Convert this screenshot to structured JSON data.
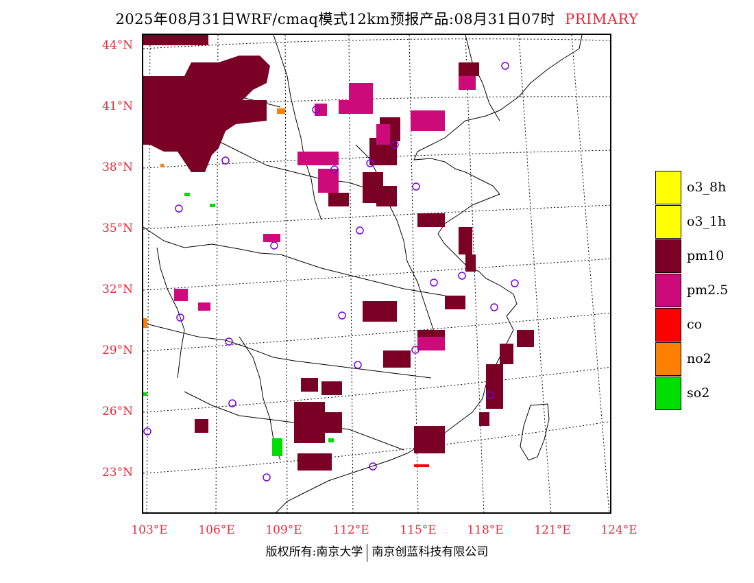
{
  "title": {
    "main": "2025年08月31日WRF/cmaq模式12km预报产品:08月31日07时",
    "tag": "PRIMARY"
  },
  "axes": {
    "lat_labels": [
      "44°N",
      "41°N",
      "38°N",
      "35°N",
      "32°N",
      "29°N",
      "26°N",
      "23°N"
    ],
    "lon_labels": [
      "103°E",
      "106°E",
      "109°E",
      "112°E",
      "115°E",
      "118°E",
      "121°E",
      "124°E"
    ]
  },
  "legend": [
    {
      "label": "o3_8h",
      "color": "#ffff00"
    },
    {
      "label": "o3_1h",
      "color": "#ffff00"
    },
    {
      "label": "pm10",
      "color": "#7a0026"
    },
    {
      "label": "pm2.5",
      "color": "#cc0a7a"
    },
    {
      "label": "co",
      "color": "#ff0000"
    },
    {
      "label": "no2",
      "color": "#ff7f00"
    },
    {
      "label": "so2",
      "color": "#00dd00"
    }
  ],
  "footer": {
    "left": "版权所有:南京大学",
    "right": "南京创蓝科技有限公司"
  },
  "colors": {
    "axis_label": "#e8283c",
    "station_marker": "#7b00d6",
    "pm10": "#7a0026",
    "pm25": "#cc0a7a",
    "no2": "#ff7f00",
    "so2": "#00dd00",
    "co": "#ff0000"
  }
}
